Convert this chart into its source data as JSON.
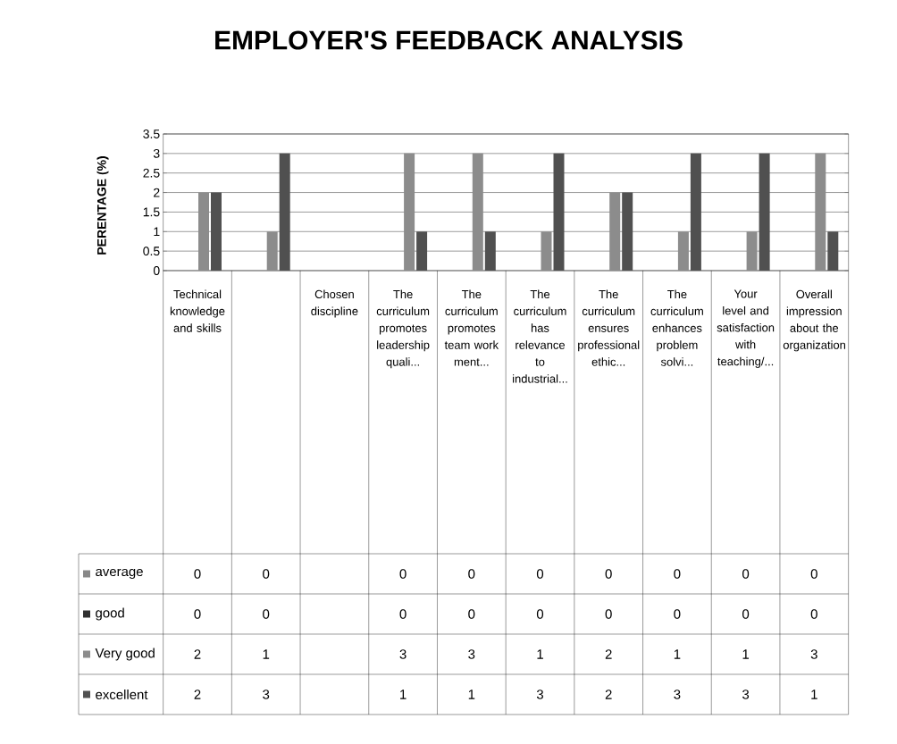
{
  "chart_data": {
    "type": "bar",
    "title": "EMPLOYER'S FEEDBACK ANALYSIS",
    "ylabel": "PERENTAGE (%)",
    "categories": [
      "Technical knowledge and skills",
      null,
      "Chosen discipline",
      "The curriculum promotes leadership quali...",
      "The curriculum promotes team work ment...",
      "The curriculum has relevance to industrial...",
      "The curriculum ensures professional ethic...",
      "The curriculum enhances problem solvi...",
      "Your level and satisfaction with teaching/...",
      "Overall impression about the organization"
    ],
    "series": [
      {
        "name": "average",
        "color": "#888888",
        "values": [
          0,
          0,
          null,
          0,
          0,
          0,
          0,
          0,
          0,
          0
        ]
      },
      {
        "name": "good",
        "color": "#303030",
        "values": [
          0,
          0,
          null,
          0,
          0,
          0,
          0,
          0,
          0,
          0
        ]
      },
      {
        "name": "Very good",
        "color": "#8c8c8c",
        "values": [
          2,
          1,
          null,
          3,
          3,
          1,
          2,
          1,
          1,
          3
        ]
      },
      {
        "name": "excellent",
        "color": "#505050",
        "values": [
          2,
          3,
          null,
          1,
          1,
          3,
          2,
          3,
          3,
          1
        ]
      }
    ],
    "ylim": [
      0,
      3.5
    ],
    "yticks": [
      0,
      0.5,
      1,
      1.5,
      2,
      2.5,
      3,
      3.5
    ],
    "grid": "y",
    "legend": "bottom",
    "data_labels": true
  }
}
